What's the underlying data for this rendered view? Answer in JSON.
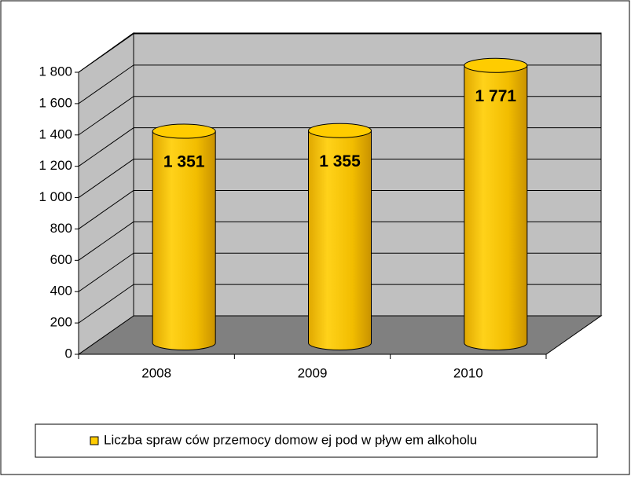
{
  "chart_data": {
    "type": "bar",
    "categories": [
      "2008",
      "2009",
      "2010"
    ],
    "series": [
      {
        "name": "Liczba spraw ców  przemocy domow ej pod w pływ em alkoholu",
        "color": "#ffcc00",
        "values": [
          1351,
          1355,
          1771
        ],
        "value_labels": [
          "1 351",
          "1 355",
          "1 771"
        ]
      }
    ],
    "ylim": [
      0,
      1800
    ],
    "yticks": [
      0,
      200,
      400,
      600,
      800,
      {
        "value": 1000,
        "label": "1 000"
      },
      {
        "value": 1200,
        "label": "1 200"
      },
      {
        "value": 1400,
        "label": "1 400"
      },
      {
        "value": 1600,
        "label": "1 600"
      },
      {
        "value": 1800,
        "label": "1 800"
      }
    ],
    "grid": true,
    "legend": "bottom"
  }
}
